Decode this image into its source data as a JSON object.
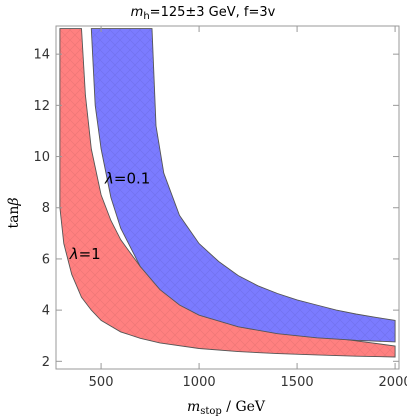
{
  "chart_data": {
    "type": "area",
    "title": {
      "var": "m",
      "sub": "h",
      "rest": "=125±3 GeV, f=3v"
    },
    "xlabel": {
      "var": "m",
      "sub": "stop",
      "rest": " / GeV"
    },
    "ylabel": {
      "pre": "tan",
      "greek": "β"
    },
    "xlim": [
      270,
      2020
    ],
    "ylim": [
      1.7,
      15.1
    ],
    "xticks": [
      500,
      1000,
      1500,
      2000
    ],
    "yticks": [
      2,
      4,
      6,
      8,
      10,
      12,
      14
    ],
    "grid": false,
    "series": [
      {
        "name": "λ=1",
        "color": "#ff8080",
        "annotation": {
          "greek": "λ",
          "rest": "=1",
          "x": 340,
          "y": 6.0
        },
        "upper": [
          [
            400,
            15.0
          ],
          [
            420,
            12.4
          ],
          [
            450,
            10.3
          ],
          [
            500,
            8.5
          ],
          [
            550,
            7.5
          ],
          [
            600,
            6.75
          ],
          [
            700,
            5.7
          ],
          [
            800,
            5.0
          ],
          [
            900,
            4.55
          ],
          [
            1000,
            4.15
          ],
          [
            1200,
            3.6
          ],
          [
            1400,
            3.25
          ],
          [
            1600,
            3.0
          ],
          [
            1800,
            2.8
          ],
          [
            2000,
            2.6
          ]
        ],
        "lower": [
          [
            290,
            15.0
          ],
          [
            290,
            8.0
          ],
          [
            310,
            6.6
          ],
          [
            350,
            5.4
          ],
          [
            400,
            4.5
          ],
          [
            450,
            4.0
          ],
          [
            500,
            3.6
          ],
          [
            600,
            3.15
          ],
          [
            700,
            2.9
          ],
          [
            800,
            2.72
          ],
          [
            1000,
            2.5
          ],
          [
            1200,
            2.38
          ],
          [
            1400,
            2.3
          ],
          [
            1600,
            2.25
          ],
          [
            1800,
            2.2
          ],
          [
            2000,
            2.17
          ]
        ]
      },
      {
        "name": "λ=0.1",
        "color": "#7b7bff",
        "annotation": {
          "greek": "λ",
          "rest": "=0.1",
          "x": 520,
          "y": 8.95
        },
        "upper": [
          [
            760,
            15.0
          ],
          [
            780,
            11.2
          ],
          [
            820,
            9.35
          ],
          [
            900,
            7.7
          ],
          [
            1000,
            6.6
          ],
          [
            1100,
            5.9
          ],
          [
            1200,
            5.35
          ],
          [
            1300,
            4.95
          ],
          [
            1400,
            4.65
          ],
          [
            1500,
            4.4
          ],
          [
            1600,
            4.2
          ],
          [
            1700,
            4.0
          ],
          [
            1800,
            3.85
          ],
          [
            1900,
            3.72
          ],
          [
            2000,
            3.6
          ]
        ],
        "lower": [
          [
            450,
            15.0
          ],
          [
            470,
            12.0
          ],
          [
            500,
            10.3
          ],
          [
            550,
            8.4
          ],
          [
            600,
            7.2
          ],
          [
            700,
            5.7
          ],
          [
            800,
            4.8
          ],
          [
            900,
            4.2
          ],
          [
            1000,
            3.8
          ],
          [
            1200,
            3.35
          ],
          [
            1400,
            3.08
          ],
          [
            1600,
            2.92
          ],
          [
            1800,
            2.82
          ],
          [
            2000,
            2.76
          ]
        ]
      }
    ]
  }
}
